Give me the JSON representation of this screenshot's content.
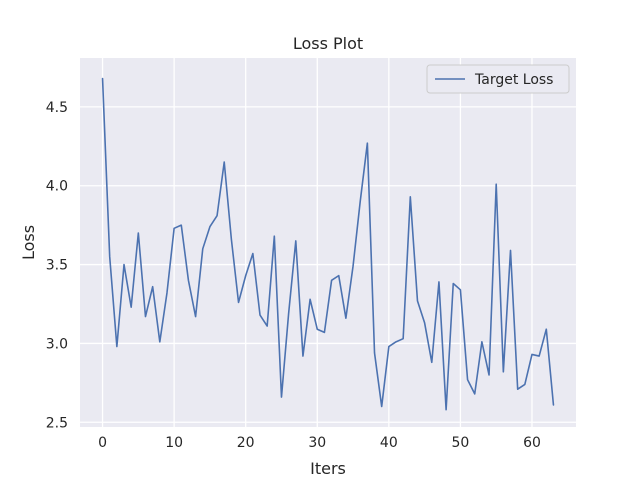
{
  "chart_data": {
    "type": "line",
    "title": "Loss Plot",
    "xlabel": "Iters",
    "ylabel": "Loss",
    "xlim": [
      -3.15,
      66.15
    ],
    "ylim": [
      2.47,
      4.81
    ],
    "xticks": [
      0,
      10,
      20,
      30,
      40,
      50,
      60
    ],
    "xtick_labels": [
      "0",
      "10",
      "20",
      "30",
      "40",
      "50",
      "60"
    ],
    "yticks": [
      2.5,
      3.0,
      3.5,
      4.0,
      4.5
    ],
    "ytick_labels": [
      "2.5",
      "3.0",
      "3.5",
      "4.0",
      "4.5"
    ],
    "grid": true,
    "legend_position": "top-right",
    "background_color": "#eaeaf2",
    "grid_color": "#ffffff",
    "series": [
      {
        "name": "Target Loss",
        "color": "#4c72b0",
        "x": [
          0,
          1,
          2,
          3,
          4,
          5,
          6,
          7,
          8,
          9,
          10,
          11,
          12,
          13,
          14,
          15,
          16,
          17,
          18,
          19,
          20,
          21,
          22,
          23,
          24,
          25,
          26,
          27,
          28,
          29,
          30,
          31,
          32,
          33,
          34,
          35,
          36,
          37,
          38,
          39,
          40,
          41,
          42,
          43,
          44,
          45,
          46,
          47,
          48,
          49,
          50,
          51,
          52,
          53,
          54,
          55,
          56,
          57,
          58,
          59,
          60,
          61,
          62,
          63
        ],
        "y": [
          4.68,
          3.55,
          2.98,
          3.5,
          3.23,
          3.7,
          3.17,
          3.36,
          3.01,
          3.32,
          3.73,
          3.75,
          3.4,
          3.17,
          3.6,
          3.74,
          3.81,
          4.15,
          3.66,
          3.26,
          3.43,
          3.57,
          3.18,
          3.11,
          3.68,
          2.66,
          3.19,
          3.65,
          2.92,
          3.28,
          3.09,
          3.07,
          3.4,
          3.43,
          3.16,
          3.49,
          3.9,
          4.27,
          2.94,
          2.6,
          2.98,
          3.01,
          3.03,
          3.93,
          3.27,
          3.13,
          2.88,
          3.39,
          2.58,
          3.38,
          3.34,
          2.77,
          2.68,
          3.01,
          2.8,
          4.01,
          2.82,
          3.59,
          2.71,
          2.74,
          2.93,
          2.92,
          3.09,
          2.61
        ]
      }
    ]
  }
}
